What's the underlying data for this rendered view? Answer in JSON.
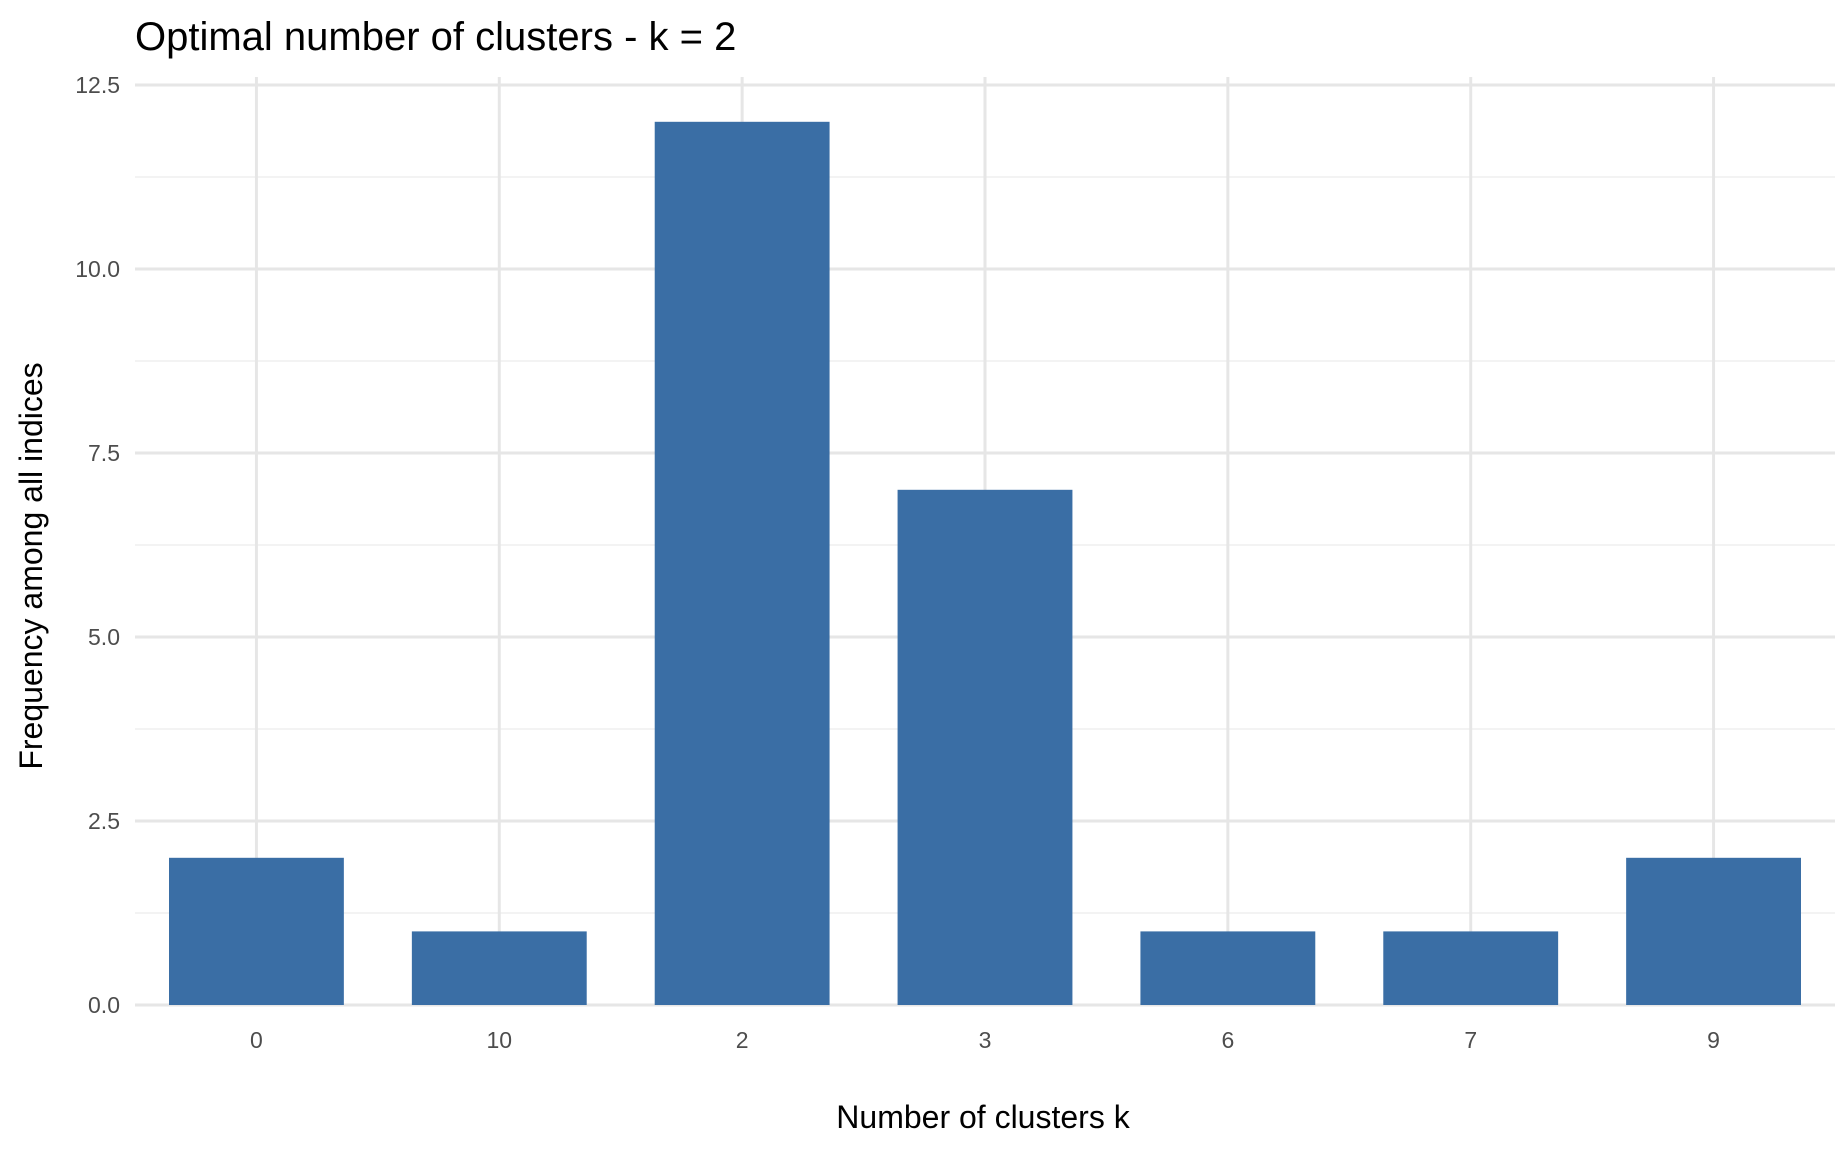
{
  "chart_data": {
    "type": "bar",
    "title": "Optimal number of clusters - k = 2",
    "xlabel": "Number of clusters k",
    "ylabel": "Frequency among all indices",
    "categories": [
      "0",
      "10",
      "2",
      "3",
      "6",
      "7",
      "9"
    ],
    "values": [
      2,
      1,
      12,
      7,
      1,
      1,
      2
    ],
    "ylim": [
      0,
      12.5
    ],
    "yticks": [
      "0.0",
      "2.5",
      "5.0",
      "7.5",
      "10.0",
      "12.5"
    ],
    "grid": true,
    "legend": "none",
    "bar_color": "#3A6EA5"
  }
}
